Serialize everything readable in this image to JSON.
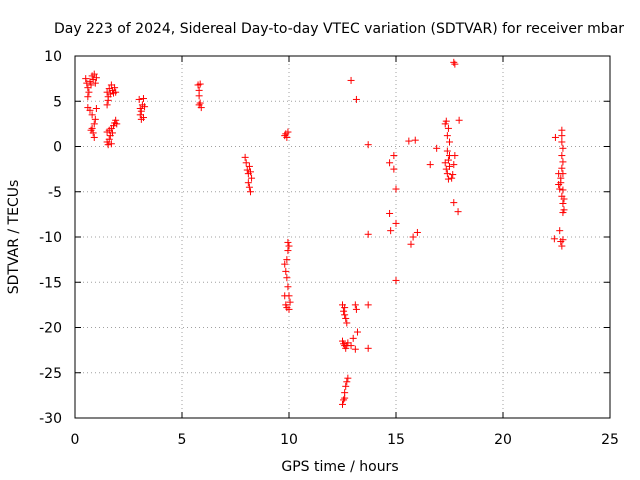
{
  "chart_data": {
    "type": "scatter",
    "title": "Day 223 of 2024, Sidereal Day-to-day VTEC variation (SDTVAR) for receiver mbar",
    "xlabel": "GPS time / hours",
    "ylabel": "SDTVAR / TECUs",
    "xlim": [
      0,
      25
    ],
    "ylim": [
      -30,
      10
    ],
    "xticks": [
      0,
      5,
      10,
      15,
      20,
      25
    ],
    "yticks": [
      -30,
      -25,
      -20,
      -15,
      -10,
      -5,
      0,
      5,
      10
    ],
    "grid": true,
    "marker": "plus",
    "color": "#ff0000",
    "series": [
      {
        "name": "SDTVAR",
        "points": [
          [
            0.5,
            7.5
          ],
          [
            0.55,
            7.0
          ],
          [
            0.6,
            6.5
          ],
          [
            0.6,
            5.5
          ],
          [
            0.65,
            6.0
          ],
          [
            0.7,
            7.2
          ],
          [
            0.75,
            6.8
          ],
          [
            0.8,
            7.8
          ],
          [
            0.85,
            7.4
          ],
          [
            0.9,
            8.0
          ],
          [
            0.95,
            7.0
          ],
          [
            1.0,
            7.6
          ],
          [
            0.6,
            4.3
          ],
          [
            0.7,
            4.0
          ],
          [
            0.8,
            3.5
          ],
          [
            0.8,
            2.0
          ],
          [
            0.85,
            1.5
          ],
          [
            0.9,
            1.0
          ],
          [
            0.9,
            2.5
          ],
          [
            0.95,
            3.0
          ],
          [
            1.0,
            4.2
          ],
          [
            0.75,
            1.8
          ],
          [
            1.5,
            6.0
          ],
          [
            1.55,
            5.5
          ],
          [
            1.6,
            6.4
          ],
          [
            1.65,
            5.8
          ],
          [
            1.7,
            6.8
          ],
          [
            1.75,
            6.2
          ],
          [
            1.8,
            5.9
          ],
          [
            1.85,
            6.5
          ],
          [
            1.9,
            6.0
          ],
          [
            1.5,
            4.6
          ],
          [
            1.55,
            5.1
          ],
          [
            1.5,
            1.6
          ],
          [
            1.5,
            0.5
          ],
          [
            1.55,
            0.2
          ],
          [
            1.6,
            1.8
          ],
          [
            1.6,
            0.8
          ],
          [
            1.65,
            1.2
          ],
          [
            1.7,
            2.0
          ],
          [
            1.7,
            0.3
          ],
          [
            1.75,
            1.5
          ],
          [
            1.8,
            2.3
          ],
          [
            1.85,
            2.6
          ],
          [
            1.9,
            2.9
          ],
          [
            1.95,
            2.5
          ],
          [
            3.0,
            5.2
          ],
          [
            3.05,
            4.2
          ],
          [
            3.05,
            3.5
          ],
          [
            3.1,
            3.9
          ],
          [
            3.1,
            3.0
          ],
          [
            3.15,
            4.6
          ],
          [
            3.2,
            3.2
          ],
          [
            3.25,
            4.4
          ],
          [
            3.2,
            5.3
          ],
          [
            5.75,
            6.8
          ],
          [
            5.8,
            6.2
          ],
          [
            5.8,
            5.6
          ],
          [
            5.85,
            4.8
          ],
          [
            5.9,
            4.3
          ],
          [
            5.85,
            6.9
          ],
          [
            5.8,
            4.6
          ],
          [
            7.95,
            -1.2
          ],
          [
            8.0,
            -1.8
          ],
          [
            8.05,
            -2.6
          ],
          [
            8.1,
            -3.0
          ],
          [
            8.15,
            -2.2
          ],
          [
            8.1,
            -4.0
          ],
          [
            8.15,
            -4.5
          ],
          [
            8.2,
            -5.0
          ],
          [
            8.25,
            -3.5
          ],
          [
            8.2,
            -2.8
          ],
          [
            9.8,
            1.2
          ],
          [
            9.85,
            1.4
          ],
          [
            9.9,
            1.0
          ],
          [
            9.95,
            1.6
          ],
          [
            9.8,
            -13.0
          ],
          [
            9.85,
            -13.8
          ],
          [
            9.9,
            -12.5
          ],
          [
            9.95,
            -11.5
          ],
          [
            10.0,
            -11.0
          ],
          [
            9.9,
            -14.5
          ],
          [
            9.95,
            -15.5
          ],
          [
            10.0,
            -16.5
          ],
          [
            9.8,
            -16.5
          ],
          [
            9.85,
            -17.5
          ],
          [
            9.9,
            -17.8
          ],
          [
            10.0,
            -18.0
          ],
          [
            10.05,
            -17.2
          ],
          [
            9.95,
            -10.6
          ],
          [
            12.5,
            -17.5
          ],
          [
            12.55,
            -18.2
          ],
          [
            12.6,
            -18.6
          ],
          [
            12.65,
            -19.0
          ],
          [
            12.7,
            -19.5
          ],
          [
            12.6,
            -17.8
          ],
          [
            12.5,
            -21.5
          ],
          [
            12.55,
            -21.8
          ],
          [
            12.6,
            -22.0
          ],
          [
            12.65,
            -22.3
          ],
          [
            12.7,
            -22.0
          ],
          [
            12.75,
            -21.7
          ],
          [
            12.5,
            -28.5
          ],
          [
            12.55,
            -28.0
          ],
          [
            12.6,
            -27.2
          ],
          [
            12.65,
            -26.5
          ],
          [
            12.7,
            -26.0
          ],
          [
            12.75,
            -25.6
          ],
          [
            12.6,
            -27.8
          ],
          [
            12.9,
            7.3
          ],
          [
            13.15,
            5.2
          ],
          [
            13.1,
            -17.5
          ],
          [
            13.15,
            -18.0
          ],
          [
            13.2,
            -20.5
          ],
          [
            12.9,
            -22.0
          ],
          [
            13.1,
            -22.4
          ],
          [
            13.0,
            -21.2
          ],
          [
            13.7,
            -17.5
          ],
          [
            13.7,
            -22.3
          ],
          [
            13.7,
            0.2
          ],
          [
            13.7,
            -9.7
          ],
          [
            14.7,
            -1.8
          ],
          [
            14.9,
            -1.0
          ],
          [
            15.0,
            -4.7
          ],
          [
            14.7,
            -7.4
          ],
          [
            14.75,
            -9.3
          ],
          [
            15.0,
            -8.5
          ],
          [
            15.0,
            -14.8
          ],
          [
            14.9,
            -2.5
          ],
          [
            15.6,
            0.6
          ],
          [
            15.9,
            0.7
          ],
          [
            15.8,
            -10.0
          ],
          [
            16.0,
            -9.5
          ],
          [
            15.7,
            -10.8
          ],
          [
            16.6,
            -2.0
          ],
          [
            16.9,
            -0.2
          ],
          [
            17.3,
            2.5
          ],
          [
            17.35,
            2.8
          ],
          [
            17.4,
            1.2
          ],
          [
            17.4,
            -0.5
          ],
          [
            17.45,
            -1.5
          ],
          [
            17.5,
            -2.2
          ],
          [
            17.4,
            -3.0
          ],
          [
            17.5,
            -1.0
          ],
          [
            17.35,
            -2.5
          ],
          [
            17.3,
            -1.8
          ],
          [
            17.5,
            0.5
          ],
          [
            17.45,
            2.0
          ],
          [
            17.45,
            -3.6
          ],
          [
            17.6,
            -3.5
          ],
          [
            17.65,
            -3.1
          ],
          [
            17.7,
            -2.0
          ],
          [
            17.75,
            -1.0
          ],
          [
            17.7,
            -6.2
          ],
          [
            17.7,
            9.3
          ],
          [
            17.75,
            9.1
          ],
          [
            17.95,
            2.9
          ],
          [
            17.9,
            -7.2
          ],
          [
            22.45,
            1.0
          ],
          [
            22.4,
            -10.2
          ],
          [
            22.65,
            -9.3
          ],
          [
            22.7,
            -10.5
          ],
          [
            22.75,
            -11.0
          ],
          [
            22.8,
            -10.3
          ],
          [
            22.6,
            -4.2
          ],
          [
            22.65,
            -4.7
          ],
          [
            22.7,
            -4.0
          ],
          [
            22.75,
            -5.5
          ],
          [
            22.7,
            -3.5
          ],
          [
            22.8,
            -4.8
          ],
          [
            22.6,
            -3.0
          ],
          [
            22.75,
            1.8
          ],
          [
            22.75,
            1.2
          ],
          [
            22.75,
            0.5
          ],
          [
            22.8,
            -0.2
          ],
          [
            22.75,
            -1.0
          ],
          [
            22.8,
            -1.7
          ],
          [
            22.75,
            -2.4
          ],
          [
            22.8,
            -3.0
          ],
          [
            22.8,
            -6.3
          ],
          [
            22.85,
            -7.0
          ],
          [
            22.8,
            -7.3
          ],
          [
            22.85,
            -5.8
          ]
        ]
      }
    ]
  }
}
